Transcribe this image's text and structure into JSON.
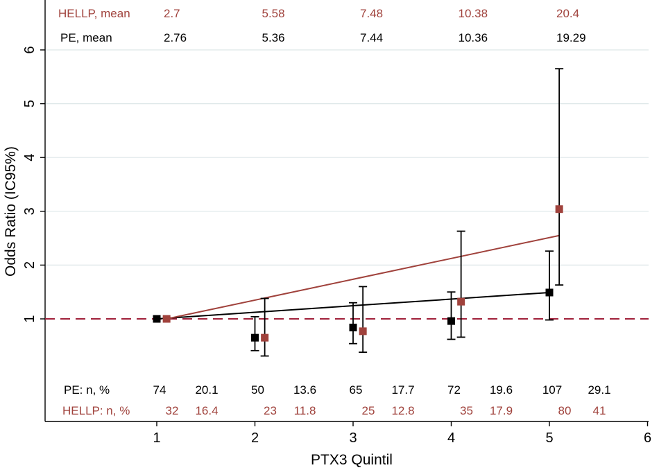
{
  "colors": {
    "hellp": "#a0423c",
    "pe": "#000000",
    "reference": "#a0203a",
    "grid": "#dde6e8"
  },
  "top_table": {
    "hellp_label": "HELLP, mean",
    "hellp_values": [
      "2.7",
      "5.58",
      "7.48",
      "10.38",
      "20.4"
    ],
    "pe_label": "PE, mean",
    "pe_values": [
      "2.76",
      "5.36",
      "7.44",
      "10.36",
      "19.29"
    ]
  },
  "bottom_table": {
    "pe_label": "PE: n, %",
    "pe_n": [
      "74",
      "50",
      "65",
      "72",
      "107"
    ],
    "pe_pct": [
      "20.1",
      "13.6",
      "17.7",
      "19.6",
      "29.1"
    ],
    "hellp_label": "HELLP: n, %",
    "hellp_n": [
      "32",
      "23",
      "25",
      "35",
      "80"
    ],
    "hellp_pct": [
      "16.4",
      "11.8",
      "12.8",
      "17.9",
      "41"
    ]
  },
  "chart_data": {
    "type": "scatter",
    "xlabel": "PTX3 Quintil",
    "ylabel": "Odds Ratio (IC95%)",
    "xlim": [
      0.3,
      6.3
    ],
    "ylim": [
      -2,
      6.9
    ],
    "x_ticks": [
      "1",
      "2",
      "3",
      "4",
      "5",
      "6"
    ],
    "y_ticks": [
      "1",
      "2",
      "3",
      "4",
      "5",
      "6"
    ],
    "reference_line": 1,
    "grid": true,
    "series": [
      {
        "key": "pe",
        "x": [
          1,
          2,
          3,
          4,
          5
        ],
        "or": [
          1.0,
          0.65,
          0.84,
          0.96,
          1.49
        ],
        "lower": [
          null,
          0.41,
          0.54,
          0.62,
          0.98
        ],
        "upper": [
          null,
          1.04,
          1.3,
          1.5,
          2.26
        ],
        "trend": [
          [
            1,
            1.0
          ],
          [
            5,
            1.49
          ]
        ]
      },
      {
        "key": "hellp",
        "x": [
          1.1,
          2.1,
          3.1,
          4.1,
          5.1
        ],
        "or": [
          1.0,
          0.65,
          0.77,
          1.32,
          3.04
        ],
        "lower": [
          null,
          0.31,
          0.38,
          0.66,
          1.63
        ],
        "upper": [
          null,
          1.38,
          1.6,
          2.63,
          5.65
        ],
        "trend": [
          [
            1.1,
            1.0
          ],
          [
            5.1,
            2.55
          ]
        ]
      }
    ]
  }
}
